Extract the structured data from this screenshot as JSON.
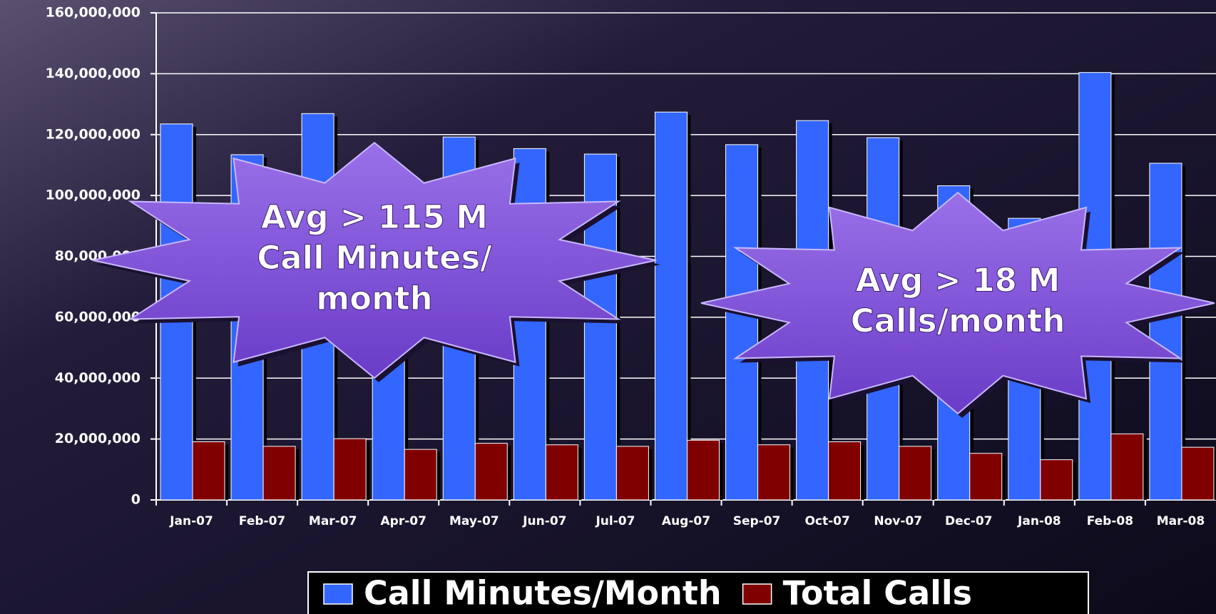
{
  "chart_data": {
    "type": "bar",
    "categories": [
      "Jan-07",
      "Feb-07",
      "Mar-07",
      "Apr-07",
      "May-07",
      "Jun-07",
      "Jul-07",
      "Aug-07",
      "Sep-07",
      "Oct-07",
      "Nov-07",
      "Dec-07",
      "Jan-08",
      "Feb-08",
      "Mar-08"
    ],
    "series": [
      {
        "name": "Call Minutes/Month",
        "color": "#3366ff",
        "values": [
          123500000,
          113400000,
          126900000,
          105000000,
          119200000,
          115400000,
          113600000,
          127400000,
          116700000,
          124600000,
          119000000,
          103200000,
          92500000,
          140400000,
          110600000
        ]
      },
      {
        "name": "Total Calls",
        "color": "#800000",
        "values": [
          19100000,
          17600000,
          20100000,
          16600000,
          18600000,
          18100000,
          17600000,
          19600000,
          18100000,
          19100000,
          17600000,
          15300000,
          13200000,
          21700000,
          17300000
        ]
      }
    ],
    "ylim": [
      0,
      160000000
    ],
    "yticks": [
      0,
      {
        "value": 20000000,
        "label": "20,000,000"
      },
      {
        "value": 40000000,
        "label": "40,000,000"
      },
      {
        "value": 60000000,
        "label": "60,000,000"
      },
      {
        "value": 80000000,
        "label": "80,000,000"
      },
      {
        "value": 100000000,
        "label": "100,000,000"
      },
      {
        "value": 120000000,
        "label": "120,000,000"
      },
      {
        "value": 140000000,
        "label": "140,000,000"
      },
      {
        "value": 160000000,
        "label": "160,000,000"
      }
    ],
    "grid": true,
    "legend": "bottom",
    "annotations": [
      [
        "Avg > 115 M",
        "Call Minutes/",
        "month"
      ],
      [
        "Avg > 18 M",
        "Calls/month"
      ]
    ]
  }
}
